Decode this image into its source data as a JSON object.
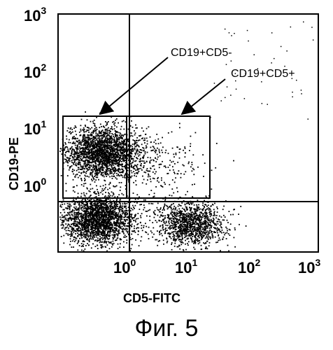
{
  "chart_data": {
    "type": "scatter",
    "xlabel": "CD5-FITC",
    "ylabel": "CD19-PE",
    "x_scale": "log",
    "y_scale": "log",
    "x_ticks": [
      "10^0",
      "10^1",
      "10^2",
      "10^3"
    ],
    "y_ticks": [
      "10^0",
      "10^1",
      "10^2",
      "10^3"
    ],
    "populations": [
      {
        "name": "CD19+CD5-",
        "x_center": 0.35,
        "y_center": 4.5,
        "density": "high"
      },
      {
        "name": "CD19+CD5+",
        "x_center": 2.5,
        "y_center": 3.0,
        "density": "low"
      },
      {
        "name": "",
        "x_center": 0.3,
        "y_center": 0.3,
        "density": "high"
      },
      {
        "name": "",
        "x_center": 10,
        "y_center": 0.25,
        "density": "medium"
      }
    ],
    "annotations": [
      "CD19+CD5-",
      "CD19+CD5+"
    ]
  },
  "ticks": {
    "y": [
      {
        "base": "10",
        "exp": "3"
      },
      {
        "base": "10",
        "exp": "2"
      },
      {
        "base": "10",
        "exp": "1"
      },
      {
        "base": "10",
        "exp": "0"
      }
    ],
    "x": [
      {
        "base": "10",
        "exp": "0"
      },
      {
        "base": "10",
        "exp": "1"
      },
      {
        "base": "10",
        "exp": "2"
      },
      {
        "base": "10",
        "exp": "3"
      }
    ]
  },
  "figure_caption": "Фиг. 5"
}
